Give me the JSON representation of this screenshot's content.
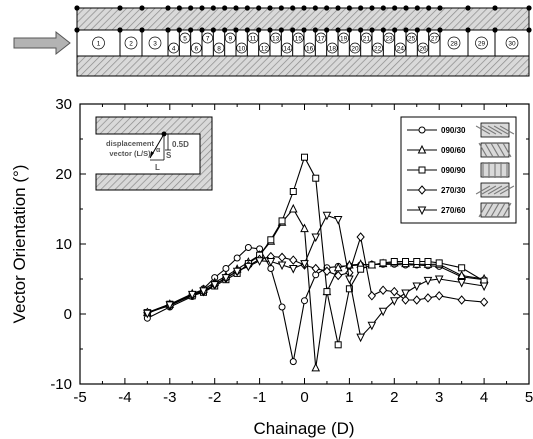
{
  "schematic": {
    "segment_labels": [
      "1",
      "2",
      "3",
      "4",
      "5",
      "6",
      "7",
      "8",
      "9",
      "10",
      "11",
      "12",
      "13",
      "14",
      "15",
      "16",
      "17",
      "18",
      "19",
      "20",
      "21",
      "22",
      "23",
      "24",
      "25",
      "26",
      "27",
      "28",
      "29",
      "30"
    ]
  },
  "chart_data": {
    "type": "line",
    "xlabel": "Chainage (D)",
    "ylabel": "Vector Orientation (°)",
    "xlim": [
      -5,
      5
    ],
    "ylim": [
      -10,
      30
    ],
    "xticks": [
      -5,
      -4,
      -3,
      -2,
      -1,
      0,
      1,
      2,
      3,
      4,
      5
    ],
    "yticks": [
      -10,
      0,
      10,
      20,
      30
    ],
    "xtick_labels": [
      "-5",
      "-4",
      "-3",
      "-2",
      "-1",
      "0",
      "1",
      "2",
      "3",
      "4",
      "5"
    ],
    "ytick_labels": [
      "-10",
      "0",
      "10",
      "20",
      "30"
    ],
    "legend_position": "top-right",
    "inset": {
      "label_line1": "displacement",
      "label_line2": "vector (L/S)",
      "dim_label": "0.5D",
      "s_label": "S",
      "l_label": "L",
      "angle_label": "α"
    },
    "series": [
      {
        "name": "090/30",
        "marker": "circle",
        "x": [
          -3.5,
          -3,
          -2.5,
          -2.25,
          -2,
          -1.75,
          -1.5,
          -1.25,
          -1,
          -0.75,
          -0.5,
          -0.25,
          0,
          0.25,
          0.5,
          0.75,
          1,
          1.25,
          1.5,
          1.75,
          2,
          2.25,
          2.5,
          2.75,
          3,
          3.5,
          4
        ],
        "y": [
          -0.6,
          1.0,
          2.5,
          3.6,
          5.2,
          6.5,
          8.0,
          9.5,
          9.3,
          6.5,
          1.0,
          -6.8,
          1.9,
          5.6,
          6.6,
          6.8,
          6.9,
          7.0,
          7.1,
          7.1,
          7.1,
          7.0,
          7.0,
          6.9,
          6.8,
          5.3,
          4.9
        ]
      },
      {
        "name": "090/60",
        "marker": "triangle-up",
        "x": [
          -3.5,
          -3,
          -2.5,
          -2.25,
          -2,
          -1.75,
          -1.5,
          -1.25,
          -1,
          -0.75,
          -0.5,
          -0.25,
          0,
          0.25,
          0.5,
          0.75,
          1,
          1.25,
          1.5,
          1.75,
          2,
          2.25,
          2.5,
          2.75,
          3,
          3.5,
          4
        ],
        "y": [
          0.2,
          1.4,
          2.9,
          3.5,
          4.5,
          5.4,
          6.4,
          7.4,
          8.4,
          10.4,
          13.1,
          15.0,
          12.2,
          -7.7,
          3.2,
          6.6,
          7.0,
          7.1,
          7.0,
          7.2,
          7.3,
          7.2,
          7.1,
          7.1,
          7.1,
          5.5,
          5.0
        ]
      },
      {
        "name": "090/90",
        "marker": "square",
        "x": [
          -3.5,
          -3,
          -2.5,
          -2.25,
          -2,
          -1.75,
          -1.5,
          -1.25,
          -1,
          -0.75,
          -0.5,
          -0.25,
          0,
          0.25,
          0.5,
          0.75,
          1,
          1.25,
          1.5,
          1.75,
          2,
          2.25,
          2.5,
          2.75,
          3,
          3.5,
          4
        ],
        "y": [
          0.2,
          1.4,
          2.6,
          3.1,
          4.0,
          4.9,
          5.8,
          7.2,
          8.4,
          10.6,
          13.3,
          17.5,
          22.4,
          19.4,
          3.2,
          -4.4,
          3.6,
          6.4,
          7.0,
          7.3,
          7.5,
          7.5,
          7.5,
          7.5,
          7.3,
          6.6,
          4.7
        ]
      },
      {
        "name": "270/30",
        "marker": "diamond",
        "x": [
          -3.5,
          -3,
          -2.5,
          -2.25,
          -2,
          -1.75,
          -1.5,
          -1.25,
          -1,
          -0.75,
          -0.5,
          -0.25,
          0,
          0.25,
          0.5,
          0.75,
          1,
          1.25,
          1.5,
          1.75,
          2,
          2.25,
          2.5,
          2.75,
          3,
          3.5,
          4
        ],
        "y": [
          0.2,
          1.2,
          2.7,
          3.2,
          4.2,
          5.1,
          6.1,
          6.9,
          7.8,
          8.2,
          8.1,
          7.7,
          7.0,
          6.5,
          6.1,
          5.5,
          5.9,
          11.0,
          2.6,
          3.4,
          3.2,
          2.0,
          2.0,
          2.3,
          2.6,
          2.0,
          1.7
        ]
      },
      {
        "name": "270/60",
        "marker": "triangle-down",
        "x": [
          -3.5,
          -3,
          -2.5,
          -2.25,
          -2,
          -1.75,
          -1.5,
          -1.25,
          -1,
          -0.75,
          -0.5,
          -0.25,
          0,
          0.25,
          0.5,
          0.75,
          1,
          1.25,
          1.5,
          1.75,
          2,
          2.25,
          2.5,
          2.75,
          3,
          3.5,
          4
        ],
        "y": [
          0.1,
          1.3,
          2.8,
          3.3,
          4.2,
          5.2,
          6.1,
          6.8,
          7.6,
          7.5,
          7.0,
          6.5,
          7.2,
          11.0,
          14.1,
          13.5,
          5.0,
          -3.3,
          -1.6,
          0.4,
          1.9,
          3.0,
          4.0,
          4.8,
          5.0,
          4.5,
          4.0
        ]
      }
    ]
  }
}
